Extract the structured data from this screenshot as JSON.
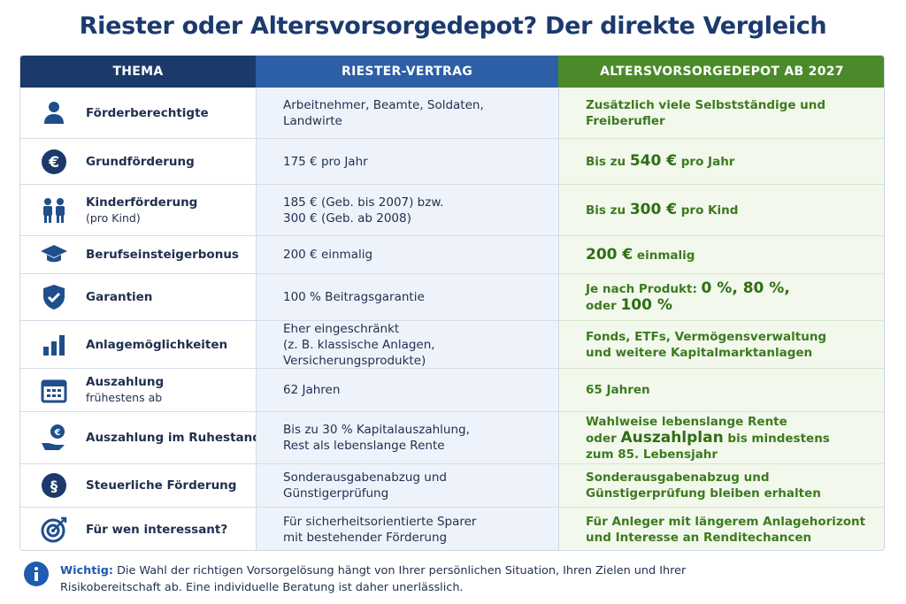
{
  "title": "Riester oder Altersvorsorgedepot? Der direkte Vergleich",
  "table": {
    "header": [
      "THEMA",
      "RIESTER-VERTRAG",
      "ALTERSVORSORGEDEPOT AB 2027"
    ],
    "rows": [
      {
        "topic": [
          "Förderberechtigte"
        ],
        "riester": [
          "Arbeitnehmer, Beamte, Soldaten,",
          "Landwirte"
        ],
        "depot": [
          "Zusätzlich viele Selbstständige und",
          "Freiberufler"
        ]
      },
      {
        "topic": [
          "Grundförderung"
        ],
        "riester": [
          "175 € pro Jahr"
        ],
        "depot": [
          [
            {
              "text": "Bis zu "
            },
            {
              "text": "540 €",
              "emphasis": true
            },
            {
              "text": " pro Jahr"
            }
          ]
        ]
      },
      {
        "topic": [
          "Kinderförderung",
          "(pro Kind)"
        ],
        "riester": [
          "185 € (Geb. bis 2007) bzw.",
          "300 € (Geb. ab 2008)"
        ],
        "depot": [
          [
            {
              "text": "Bis zu "
            },
            {
              "text": "300 €",
              "emphasis": true
            },
            {
              "text": " pro Kind"
            }
          ]
        ]
      },
      {
        "topic": [
          "Berufseinsteigerbonus"
        ],
        "riester": [
          "200 € einmalig"
        ],
        "depot": [
          [
            {
              "text": "200 €",
              "emphasis": true
            },
            {
              "text": " einmalig"
            }
          ]
        ]
      },
      {
        "topic": [
          "Garantien"
        ],
        "riester": [
          "100 % Beitragsgarantie"
        ],
        "depot": [
          [
            {
              "text": "Je nach Produkt: "
            },
            {
              "text": "0 %, 80 %,",
              "emphasis": true
            }
          ],
          [
            {
              "text": "oder "
            },
            {
              "text": "100 %",
              "emphasis": true
            }
          ]
        ]
      },
      {
        "topic": [
          "Anlagemöglichkeiten"
        ],
        "riester": [
          "Eher eingeschränkt",
          "(z. B. klassische Anlagen,",
          "Versicherungsprodukte)"
        ],
        "depot": [
          "Fonds, ETFs, Vermögensverwaltung",
          "und weitere Kapitalmarktanlagen"
        ]
      },
      {
        "topic": [
          "Auszahlung",
          "frühestens ab"
        ],
        "riester": [
          "62 Jahren"
        ],
        "depot": [
          "65 Jahren"
        ]
      },
      {
        "topic": [
          "Auszahlung im Ruhestand"
        ],
        "riester": [
          "Bis zu 30 % Kapitalauszahlung,",
          "Rest als lebenslange Rente"
        ],
        "depot": [
          "Wahlweise lebenslange Rente",
          [
            {
              "text": "oder "
            },
            {
              "text": "Auszahlplan",
              "emphasis": true
            },
            {
              "text": " bis mindestens"
            }
          ],
          "zum 85. Lebensjahr"
        ]
      },
      {
        "topic": [
          "Steuerliche Förderung"
        ],
        "riester": [
          "Sonderausgabenabzug und",
          "Günstigerprüfung"
        ],
        "depot": [
          "Sonderausgabenabzug und",
          "Günstigerprüfung bleiben erhalten"
        ]
      },
      {
        "topic": [
          "Für wen interessant?"
        ],
        "riester": [
          "Für sicherheitsorientierte Sparer",
          "mit bestehender Förderung"
        ],
        "depot": [
          "Für Anleger mit längerem Anlagehorizont",
          "und Interesse an Renditechancen"
        ]
      }
    ]
  },
  "note": {
    "label": "Wichtig:",
    "lines": [
      "Die Wahl der richtigen Vorsorgelösung hängt von Ihrer persönlichen Situation, Ihren Zielen und Ihrer",
      "Risikobereitschaft ab. Eine individuelle Beratung ist daher unerlässlich."
    ]
  }
}
